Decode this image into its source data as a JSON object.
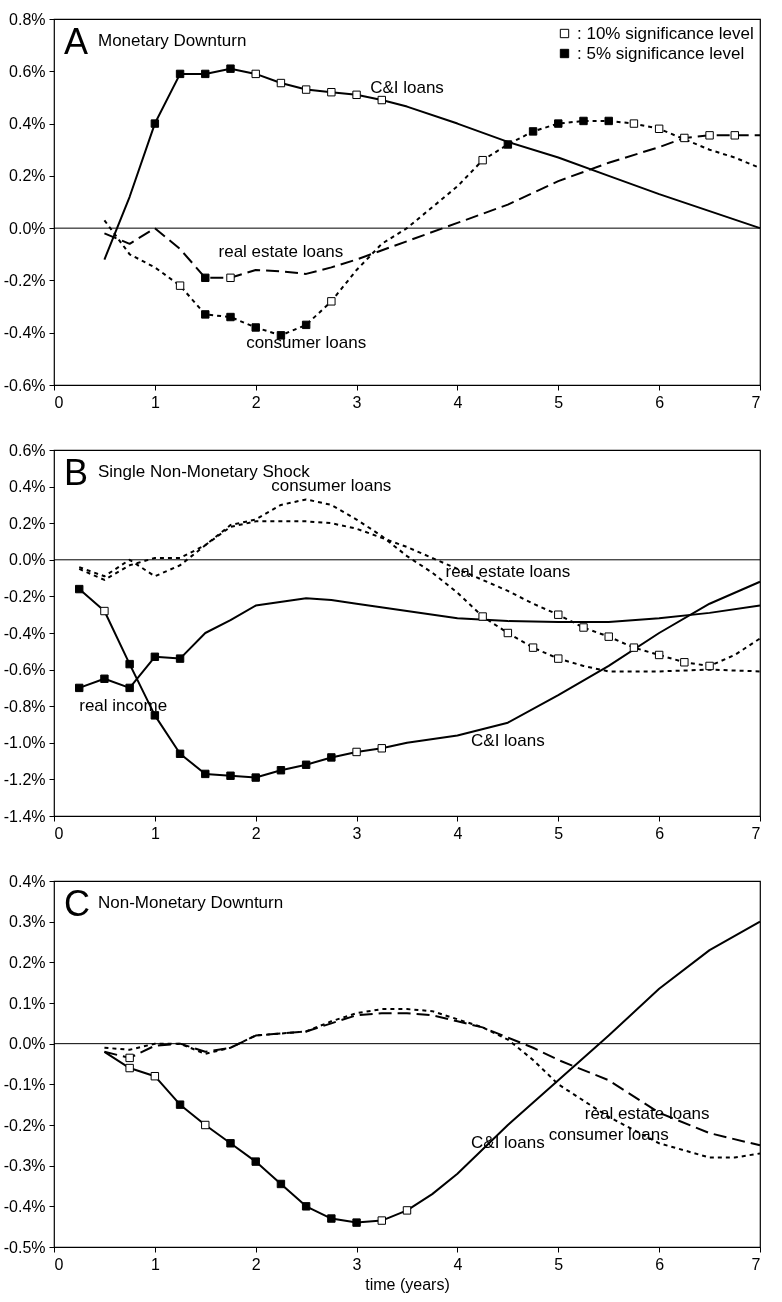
{
  "chart_data": [
    {
      "type": "line",
      "title": "Monetary Downturn",
      "xlim": [
        0,
        7
      ],
      "xticks": [
        0,
        1,
        2,
        3,
        4,
        5,
        6,
        7
      ],
      "ylim": [
        -0.6,
        0.8
      ],
      "yticks": [
        {
          "value": -0.6,
          "label": "-0.6%"
        },
        {
          "value": -0.4,
          "label": "-0.4%"
        },
        {
          "value": -0.2,
          "label": "-0.2%"
        },
        {
          "value": 0,
          "label": "0.0%"
        },
        {
          "value": 0.2,
          "label": "0.2%"
        },
        {
          "value": 0.4,
          "label": "0.4%"
        },
        {
          "value": 0.6,
          "label": "0.6%"
        },
        {
          "value": 0.8,
          "label": "0.8%"
        }
      ],
      "legend": "top right",
      "ref_lines": [
        {
          "axis": "y",
          "value": 0,
          "color": "#000000"
        }
      ],
      "annotations": [
        "A",
        {
          "text": "C&I loans",
          "x": 3.5,
          "y": 0.465
        },
        {
          "text": "real estate loans",
          "x": 2.25,
          "y": -0.165
        },
        {
          "text": "consumer loans",
          "x": 2.5,
          "y": -0.37
        }
      ],
      "series": [
        {
          "type": "line",
          "color": "#000000",
          "line_style": "solid",
          "x": [
            0.5,
            0.75,
            1,
            1.25,
            1.5,
            1.75,
            2,
            2.25,
            2.5,
            2.75,
            3,
            3.25,
            3.5,
            4,
            4.5,
            5,
            5.5,
            6,
            6.5,
            7
          ],
          "values": [
            -0.12,
            0.12,
            0.4,
            0.59,
            0.59,
            0.61,
            0.59,
            0.555,
            0.53,
            0.52,
            0.51,
            0.49,
            0.465,
            0.4,
            0.33,
            0.27,
            0.2,
            0.13,
            0.065,
            0
          ]
        },
        {
          "type": "line",
          "color": "#000000",
          "line_style": "dashed",
          "x": [
            0.5,
            0.75,
            1,
            1.25,
            1.5,
            1.75,
            2,
            2.25,
            2.5,
            2.75,
            3,
            3.5,
            4,
            4.5,
            5,
            5.5,
            6,
            6.25,
            6.5,
            6.75,
            7
          ],
          "values": [
            -0.02,
            -0.06,
            0,
            -0.08,
            -0.19,
            -0.19,
            -0.16,
            -0.165,
            -0.175,
            -0.15,
            -0.12,
            -0.05,
            0.02,
            0.09,
            0.18,
            0.25,
            0.31,
            0.345,
            0.355,
            0.355,
            0.355
          ]
        },
        {
          "type": "line",
          "color": "#000000",
          "line_style": "dotted",
          "x": [
            0.5,
            0.75,
            1,
            1.25,
            1.5,
            1.75,
            2,
            2.25,
            2.5,
            2.75,
            3,
            3.25,
            3.5,
            3.75,
            4,
            4.25,
            4.5,
            4.75,
            5,
            5.25,
            5.5,
            5.75,
            6,
            6.25,
            6.5,
            6.75,
            7
          ],
          "values": [
            0.03,
            -0.1,
            -0.15,
            -0.22,
            -0.33,
            -0.34,
            -0.38,
            -0.41,
            -0.37,
            -0.28,
            -0.16,
            -0.06,
            0,
            0.08,
            0.16,
            0.26,
            0.32,
            0.37,
            0.4,
            0.41,
            0.41,
            0.4,
            0.38,
            0.34,
            0.3,
            0.27,
            0.23
          ]
        },
        {
          "type": "scatter",
          "name": ": 10% significance level",
          "color": "#ffffff",
          "marker": "square",
          "x": [
            2,
            2.25,
            2.5,
            2.75,
            3,
            3.25,
            1.25,
            2.75,
            4.25,
            5.75,
            6,
            1.75,
            6.25,
            6.5,
            6.75
          ],
          "values": [
            0.59,
            0.555,
            0.53,
            0.52,
            0.51,
            0.49,
            -0.22,
            -0.28,
            0.26,
            0.4,
            0.38,
            -0.19,
            0.345,
            0.355,
            0.355
          ]
        },
        {
          "type": "scatter",
          "name": ": 5% significance level",
          "color": "#000000",
          "marker": "square",
          "x": [
            1,
            1.25,
            1.5,
            1.75,
            1.5,
            1.5,
            1.75,
            2,
            2.25,
            2.5,
            4.5,
            4.75,
            5,
            5.25,
            5.5
          ],
          "values": [
            0.4,
            0.59,
            0.59,
            0.61,
            -0.19,
            -0.33,
            -0.34,
            -0.38,
            -0.41,
            -0.37,
            0.32,
            0.37,
            0.4,
            0.41,
            0.41
          ]
        }
      ]
    },
    {
      "type": "line",
      "title": "Single Non-Monetary Shock",
      "xlim": [
        0,
        7
      ],
      "xticks": [
        0,
        1,
        2,
        3,
        4,
        5,
        6,
        7
      ],
      "ylim": [
        -1.4,
        0.6
      ],
      "yticks": [
        {
          "value": -1.4,
          "label": "-1.4%"
        },
        {
          "value": -1.2,
          "label": "-1.2%"
        },
        {
          "value": -1,
          "label": "-1.0%"
        },
        {
          "value": -0.8,
          "label": "-0.8%"
        },
        {
          "value": -0.6,
          "label": "-0.6%"
        },
        {
          "value": -0.4,
          "label": "-0.4%"
        },
        {
          "value": -0.2,
          "label": "-0.2%"
        },
        {
          "value": 0,
          "label": "0.0%"
        },
        {
          "value": 0.2,
          "label": "0.2%"
        },
        {
          "value": 0.4,
          "label": "0.4%"
        },
        {
          "value": 0.6,
          "label": "0.6%"
        }
      ],
      "legend": "top right",
      "ref_lines": [
        {
          "axis": "y",
          "value": 0,
          "color": "#000000"
        }
      ],
      "annotations": [
        "B",
        {
          "text": "consumer loans",
          "x": 2.75,
          "y": 0.3
        },
        {
          "text": "real estate loans",
          "x": 4.5,
          "y": -0.17
        },
        {
          "text": "real income",
          "x": 0.25,
          "y": -0.7
        },
        {
          "text": "C&I loans",
          "x": 4.5,
          "y": -0.89
        }
      ],
      "series": [
        {
          "type": "line",
          "color": "#000000",
          "line_style": "solid",
          "x": [
            0.25,
            0.5,
            0.75,
            1,
            1.25,
            1.5,
            1.75,
            2,
            2.25,
            2.5,
            2.75,
            3,
            3.25,
            3.5,
            4,
            4.5,
            5,
            5.5,
            6,
            6.5,
            7
          ],
          "values": [
            -0.16,
            -0.28,
            -0.57,
            -0.85,
            -1.06,
            -1.17,
            -1.18,
            -1.19,
            -1.15,
            -1.12,
            -1.08,
            -1.05,
            -1.03,
            -1,
            -0.96,
            -0.89,
            -0.74,
            -0.58,
            -0.4,
            -0.24,
            -0.12
          ]
        },
        {
          "type": "line",
          "color": "#000000",
          "line_style": "solid",
          "x": [
            0.25,
            0.5,
            0.75,
            1,
            1.25,
            1.5,
            1.75,
            2,
            2.5,
            2.75,
            3,
            3.5,
            4,
            4.5,
            5,
            5.5,
            6,
            6.5,
            7
          ],
          "values": [
            -0.7,
            -0.65,
            -0.7,
            -0.53,
            -0.54,
            -0.4,
            -0.33,
            -0.25,
            -0.21,
            -0.22,
            -0.24,
            -0.28,
            -0.32,
            -0.335,
            -0.34,
            -0.34,
            -0.32,
            -0.29,
            -0.25
          ]
        },
        {
          "type": "line",
          "color": "#000000",
          "line_style": "dotted",
          "x": [
            0.25,
            0.5,
            0.75,
            1,
            1.25,
            1.5,
            1.75,
            2,
            2.25,
            2.5,
            2.75,
            3,
            3.25,
            3.5,
            3.75,
            4,
            4.25,
            4.5,
            4.75,
            5,
            5.25,
            5.5,
            5.75,
            6,
            6.25,
            6.5,
            6.75,
            7
          ],
          "values": [
            -0.05,
            -0.11,
            -0.03,
            0.01,
            0.01,
            0.08,
            0.18,
            0.21,
            0.21,
            0.21,
            0.2,
            0.17,
            0.12,
            0.07,
            0.01,
            -0.05,
            -0.11,
            -0.17,
            -0.24,
            -0.3,
            -0.37,
            -0.42,
            -0.48,
            -0.52,
            -0.56,
            -0.58,
            -0.52,
            -0.43
          ]
        },
        {
          "type": "line",
          "color": "#000000",
          "line_style": "dotted",
          "x": [
            0.25,
            0.5,
            0.75,
            1,
            1.25,
            1.5,
            1.75,
            2,
            2.25,
            2.5,
            2.75,
            3,
            3.25,
            3.5,
            3.75,
            4,
            4.25,
            4.5,
            4.75,
            5,
            5.25,
            5.5,
            6,
            6.5,
            7
          ],
          "values": [
            -0.04,
            -0.09,
            0,
            -0.09,
            -0.03,
            0.08,
            0.19,
            0.22,
            0.3,
            0.33,
            0.3,
            0.22,
            0.13,
            0.02,
            -0.07,
            -0.18,
            -0.31,
            -0.4,
            -0.48,
            -0.54,
            -0.58,
            -0.61,
            -0.61,
            -0.6,
            -0.61
          ]
        },
        {
          "type": "scatter",
          "name": ": 10% significance level",
          "color": "#ffffff",
          "marker": "square",
          "x": [
            0.5,
            3,
            3.25,
            4.25,
            4.5,
            4.75,
            5,
            5,
            5.25,
            5.5,
            5.75,
            6,
            6.25,
            6.5
          ],
          "values": [
            -0.28,
            -1.05,
            -1.03,
            -0.31,
            -0.4,
            -0.48,
            -0.54,
            -0.3,
            -0.37,
            -0.42,
            -0.48,
            -0.52,
            -0.56,
            -0.58
          ]
        },
        {
          "type": "scatter",
          "name": ": 5% significance level",
          "color": "#000000",
          "marker": "square",
          "x": [
            0.25,
            0.75,
            1,
            1.25,
            1.5,
            1.75,
            2,
            2.25,
            2.5,
            2.75,
            0.25,
            0.5,
            0.75,
            1,
            1.25
          ],
          "values": [
            -0.16,
            -0.57,
            -0.85,
            -1.06,
            -1.17,
            -1.18,
            -1.19,
            -1.15,
            -1.12,
            -1.08,
            -0.7,
            -0.65,
            -0.7,
            -0.53,
            -0.54
          ]
        }
      ]
    },
    {
      "type": "line",
      "title": "Non-Monetary Downturn",
      "xlabel": "time (years)",
      "xlim": [
        0,
        7
      ],
      "xticks": [
        0,
        1,
        2,
        3,
        4,
        5,
        6,
        7
      ],
      "ylim": [
        -0.5,
        0.4
      ],
      "yticks": [
        {
          "value": -0.5,
          "label": "-0.5%"
        },
        {
          "value": -0.4,
          "label": "-0.4%"
        },
        {
          "value": -0.3,
          "label": "-0.3%"
        },
        {
          "value": -0.2,
          "label": "-0.2%"
        },
        {
          "value": -0.1,
          "label": "-0.1%"
        },
        {
          "value": 0,
          "label": "0.0%"
        },
        {
          "value": 0.1,
          "label": "0.1%"
        },
        {
          "value": 0.2,
          "label": "0.2%"
        },
        {
          "value": 0.3,
          "label": "0.3%"
        },
        {
          "value": 0.4,
          "label": "0.4%"
        }
      ],
      "legend": "top right",
      "ref_lines": [
        {
          "axis": "y",
          "value": 0,
          "color": "#000000"
        }
      ],
      "annotations": [
        "C",
        {
          "text": "consumer loans",
          "x": 5.5,
          "y": -0.18
        },
        {
          "text": "real estate loans",
          "x": 6.5,
          "y": -0.22
        },
        {
          "text": "C&I loans",
          "x": 4.5,
          "y": -0.2
        }
      ],
      "series": [
        {
          "type": "line",
          "color": "#000000",
          "line_style": "solid",
          "x": [
            0.5,
            0.75,
            1,
            1.25,
            1.5,
            1.75,
            2,
            2.25,
            2.5,
            2.75,
            3,
            3.25,
            3.5,
            3.75,
            4,
            4.5,
            5,
            5.5,
            6,
            6.5,
            7
          ],
          "values": [
            -0.02,
            -0.06,
            -0.08,
            -0.15,
            -0.2,
            -0.245,
            -0.29,
            -0.345,
            -0.4,
            -0.43,
            -0.44,
            -0.435,
            -0.41,
            -0.37,
            -0.32,
            -0.2,
            -0.09,
            0.02,
            0.135,
            0.23,
            0.3
          ]
        },
        {
          "type": "line",
          "color": "#000000",
          "line_style": "dashed",
          "x": [
            0.5,
            0.75,
            1,
            1.25,
            1.5,
            1.75,
            2,
            2.25,
            2.5,
            2.75,
            3,
            3.25,
            3.5,
            3.75,
            4,
            4.25,
            4.5,
            4.75,
            5,
            5.5,
            6,
            6.5,
            7
          ],
          "values": [
            -0.02,
            -0.035,
            -0.005,
            0,
            -0.02,
            -0.01,
            0.02,
            0.025,
            0.03,
            0.05,
            0.07,
            0.075,
            0.075,
            0.07,
            0.055,
            0.04,
            0.015,
            -0.01,
            -0.04,
            -0.09,
            -0.17,
            -0.22,
            -0.25
          ]
        },
        {
          "type": "line",
          "color": "#000000",
          "line_style": "dotted",
          "x": [
            0.5,
            0.75,
            1,
            1.25,
            1.5,
            1.75,
            2,
            2.5,
            2.75,
            3,
            3.25,
            3.5,
            3.75,
            4,
            4.25,
            4.5,
            4.75,
            5,
            5.5,
            6,
            6.5,
            6.75,
            7
          ],
          "values": [
            -0.01,
            -0.015,
            0,
            0,
            -0.025,
            -0.01,
            0.02,
            0.03,
            0.055,
            0.075,
            0.085,
            0.085,
            0.08,
            0.06,
            0.04,
            0.01,
            -0.04,
            -0.1,
            -0.18,
            -0.245,
            -0.28,
            -0.28,
            -0.27
          ]
        },
        {
          "type": "scatter",
          "name": ": 10% significance level",
          "color": "#ffffff",
          "marker": "square",
          "x": [
            0.75,
            1,
            1.5,
            3.25,
            3.5,
            0.75
          ],
          "values": [
            -0.06,
            -0.08,
            -0.2,
            -0.435,
            -0.41,
            -0.035
          ]
        },
        {
          "type": "scatter",
          "name": ": 5% significance level",
          "color": "#000000",
          "marker": "square",
          "x": [
            1.25,
            1.75,
            2,
            2.25,
            2.5,
            2.75,
            3
          ],
          "values": [
            -0.15,
            -0.245,
            -0.29,
            -0.345,
            -0.4,
            -0.43,
            -0.44
          ]
        }
      ]
    }
  ]
}
